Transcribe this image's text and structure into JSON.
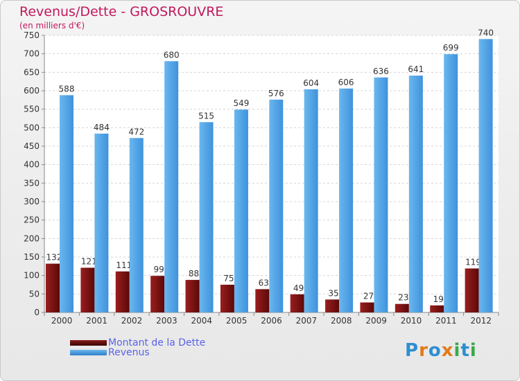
{
  "title": "Revenus/Dette - GROSROUVRE",
  "subtitle": "(en milliers d'€)",
  "chart_data": {
    "type": "bar",
    "categories": [
      "2000",
      "2001",
      "2002",
      "2003",
      "2004",
      "2005",
      "2006",
      "2007",
      "2008",
      "2009",
      "2010",
      "2011",
      "2012"
    ],
    "series": [
      {
        "name": "Montant de la Dette",
        "values": [
          132,
          121,
          111,
          99,
          88,
          75,
          63,
          49,
          35,
          27,
          23,
          19,
          119
        ],
        "color": "#7a1010"
      },
      {
        "name": "Revenus",
        "values": [
          588,
          484,
          472,
          680,
          515,
          549,
          576,
          604,
          606,
          636,
          641,
          699,
          740
        ],
        "color": "#4aa3e8"
      }
    ],
    "ylim": [
      0,
      750
    ],
    "yticks": [
      0,
      50,
      100,
      150,
      200,
      250,
      300,
      350,
      400,
      450,
      500,
      550,
      600,
      650,
      700,
      750
    ],
    "grid": true,
    "xlabel": "",
    "ylabel": ""
  },
  "legend": {
    "items": [
      {
        "label": "Montant de la Dette",
        "color": "#6b0d0d"
      },
      {
        "label": "Revenus",
        "color": "#3d8fd9"
      }
    ]
  },
  "logo": {
    "letters": [
      "P",
      "r",
      "o",
      "x",
      "i",
      "t",
      "i"
    ],
    "colors": [
      "#2d8fd0",
      "#e07b1a",
      "#2d8fd0",
      "#e07b1a",
      "#3aa84a",
      "#2d8fd0",
      "#3aa84a"
    ]
  }
}
